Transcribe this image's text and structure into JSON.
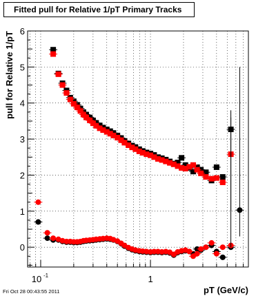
{
  "header": {
    "title": "Fitted pull for Relative 1/pT  Primary Tracks",
    "timestamp": "Fri Oct 28 00:43:55 2011"
  },
  "chart_data": {
    "type": "scatter",
    "title": "Fitted pull for Relative 1/pT  Primary Tracks",
    "xlabel": "pT (GeV/c)",
    "ylabel": "pull for Relative 1/pT",
    "xscale": "log",
    "xlim": [
      0.076,
      7.8
    ],
    "ylim": [
      -0.55,
      6.0
    ],
    "grid": true,
    "x_tick_labels": [
      "10",
      "1"
    ],
    "x_tick_superscript": "-1",
    "y_tick_labels": [
      "0",
      "1",
      "2",
      "3",
      "4",
      "5",
      "6"
    ],
    "series": [
      {
        "color": "#000000",
        "marker": "square",
        "x": [
          0.13,
          0.145,
          0.158,
          0.172,
          0.186,
          0.2,
          0.215,
          0.23,
          0.245,
          0.26,
          0.28,
          0.3,
          0.32,
          0.345,
          0.37,
          0.4,
          0.43,
          0.46,
          0.5,
          0.54,
          0.58,
          0.63,
          0.68,
          0.73,
          0.79,
          0.85,
          0.92,
          1.0,
          1.08,
          1.17,
          1.27,
          1.38,
          1.5,
          1.63,
          1.77,
          1.92,
          2.08,
          2.26,
          2.45,
          2.66,
          2.88,
          3.2,
          3.6,
          4.0,
          4.55,
          5.4
        ],
        "y": [
          5.48,
          4.82,
          4.55,
          4.35,
          4.15,
          4.05,
          3.95,
          3.85,
          3.75,
          3.68,
          3.6,
          3.52,
          3.45,
          3.38,
          3.32,
          3.27,
          3.22,
          3.17,
          3.1,
          3.03,
          2.95,
          2.88,
          2.82,
          2.78,
          2.72,
          2.67,
          2.63,
          2.6,
          2.56,
          2.5,
          2.47,
          2.43,
          2.38,
          2.32,
          2.35,
          2.48,
          2.28,
          2.2,
          2.1,
          2.22,
          2.15,
          2.08,
          1.85,
          2.22,
          1.95,
          3.27
        ]
      },
      {
        "color": "#ff0000",
        "marker": "square",
        "x": [
          0.13,
          0.145,
          0.158,
          0.172,
          0.186,
          0.2,
          0.215,
          0.23,
          0.245,
          0.26,
          0.28,
          0.3,
          0.32,
          0.345,
          0.37,
          0.4,
          0.43,
          0.46,
          0.5,
          0.54,
          0.58,
          0.63,
          0.68,
          0.73,
          0.79,
          0.85,
          0.92,
          1.0,
          1.08,
          1.17,
          1.27,
          1.38,
          1.5,
          1.63,
          1.77,
          1.92,
          2.08,
          2.26,
          2.45,
          2.66,
          2.88,
          3.2,
          3.6,
          4.0,
          4.55,
          5.4
        ],
        "y": [
          5.36,
          4.8,
          4.5,
          4.28,
          4.1,
          3.98,
          3.88,
          3.78,
          3.68,
          3.6,
          3.52,
          3.44,
          3.37,
          3.3,
          3.25,
          3.2,
          3.15,
          3.1,
          3.04,
          2.97,
          2.9,
          2.83,
          2.77,
          2.72,
          2.66,
          2.62,
          2.58,
          2.55,
          2.5,
          2.45,
          2.42,
          2.38,
          2.34,
          2.3,
          2.25,
          2.2,
          2.18,
          2.23,
          2.28,
          2.15,
          2.05,
          1.95,
          1.9,
          1.92,
          1.8,
          2.58
        ]
      },
      {
        "color": "#000000",
        "marker": "circle",
        "x": [
          0.095,
          0.115,
          0.13,
          0.145,
          0.158,
          0.172,
          0.186,
          0.2,
          0.215,
          0.23,
          0.245,
          0.26,
          0.28,
          0.3,
          0.32,
          0.345,
          0.37,
          0.4,
          0.43,
          0.46,
          0.5,
          0.54,
          0.58,
          0.63,
          0.68,
          0.73,
          0.79,
          0.85,
          0.92,
          1.0,
          1.08,
          1.17,
          1.27,
          1.38,
          1.5,
          1.63,
          1.77,
          1.92,
          2.08,
          2.26,
          2.45,
          2.66,
          2.88,
          3.2,
          3.6,
          4.0,
          4.55,
          5.4,
          6.5
        ],
        "y": [
          0.7,
          0.25,
          0.2,
          0.2,
          0.16,
          0.14,
          0.14,
          0.13,
          0.13,
          0.14,
          0.16,
          0.17,
          0.18,
          0.19,
          0.2,
          0.21,
          0.22,
          0.23,
          0.22,
          0.2,
          0.16,
          0.1,
          0.03,
          -0.03,
          -0.07,
          -0.1,
          -0.12,
          -0.13,
          -0.14,
          -0.15,
          -0.14,
          -0.14,
          -0.15,
          -0.14,
          -0.16,
          -0.22,
          -0.15,
          -0.12,
          -0.1,
          -0.12,
          -0.18,
          -0.05,
          -0.08,
          0.0,
          0.05,
          -0.12,
          -0.28,
          0.0,
          1.03
        ]
      },
      {
        "color": "#ff0000",
        "marker": "circle",
        "x": [
          0.095,
          0.115,
          0.13,
          0.145,
          0.158,
          0.172,
          0.186,
          0.2,
          0.215,
          0.23,
          0.245,
          0.26,
          0.28,
          0.3,
          0.32,
          0.345,
          0.37,
          0.4,
          0.43,
          0.46,
          0.5,
          0.54,
          0.58,
          0.63,
          0.68,
          0.73,
          0.79,
          0.85,
          0.92,
          1.0,
          1.08,
          1.17,
          1.27,
          1.38,
          1.5,
          1.63,
          1.77,
          1.92,
          2.08,
          2.26,
          2.45,
          2.66,
          2.88,
          3.2,
          3.6,
          4.0,
          4.55,
          5.4
        ],
        "y": [
          1.25,
          0.4,
          0.25,
          0.22,
          0.18,
          0.16,
          0.16,
          0.15,
          0.15,
          0.16,
          0.18,
          0.19,
          0.2,
          0.21,
          0.22,
          0.23,
          0.24,
          0.25,
          0.24,
          0.21,
          0.17,
          0.11,
          0.05,
          -0.01,
          -0.05,
          -0.08,
          -0.1,
          -0.11,
          -0.12,
          -0.13,
          -0.12,
          -0.12,
          -0.13,
          -0.12,
          -0.14,
          -0.2,
          -0.13,
          -0.1,
          -0.08,
          -0.12,
          -0.25,
          -0.18,
          -0.05,
          0.0,
          0.12,
          -0.18,
          0.0,
          0.05
        ]
      }
    ]
  }
}
